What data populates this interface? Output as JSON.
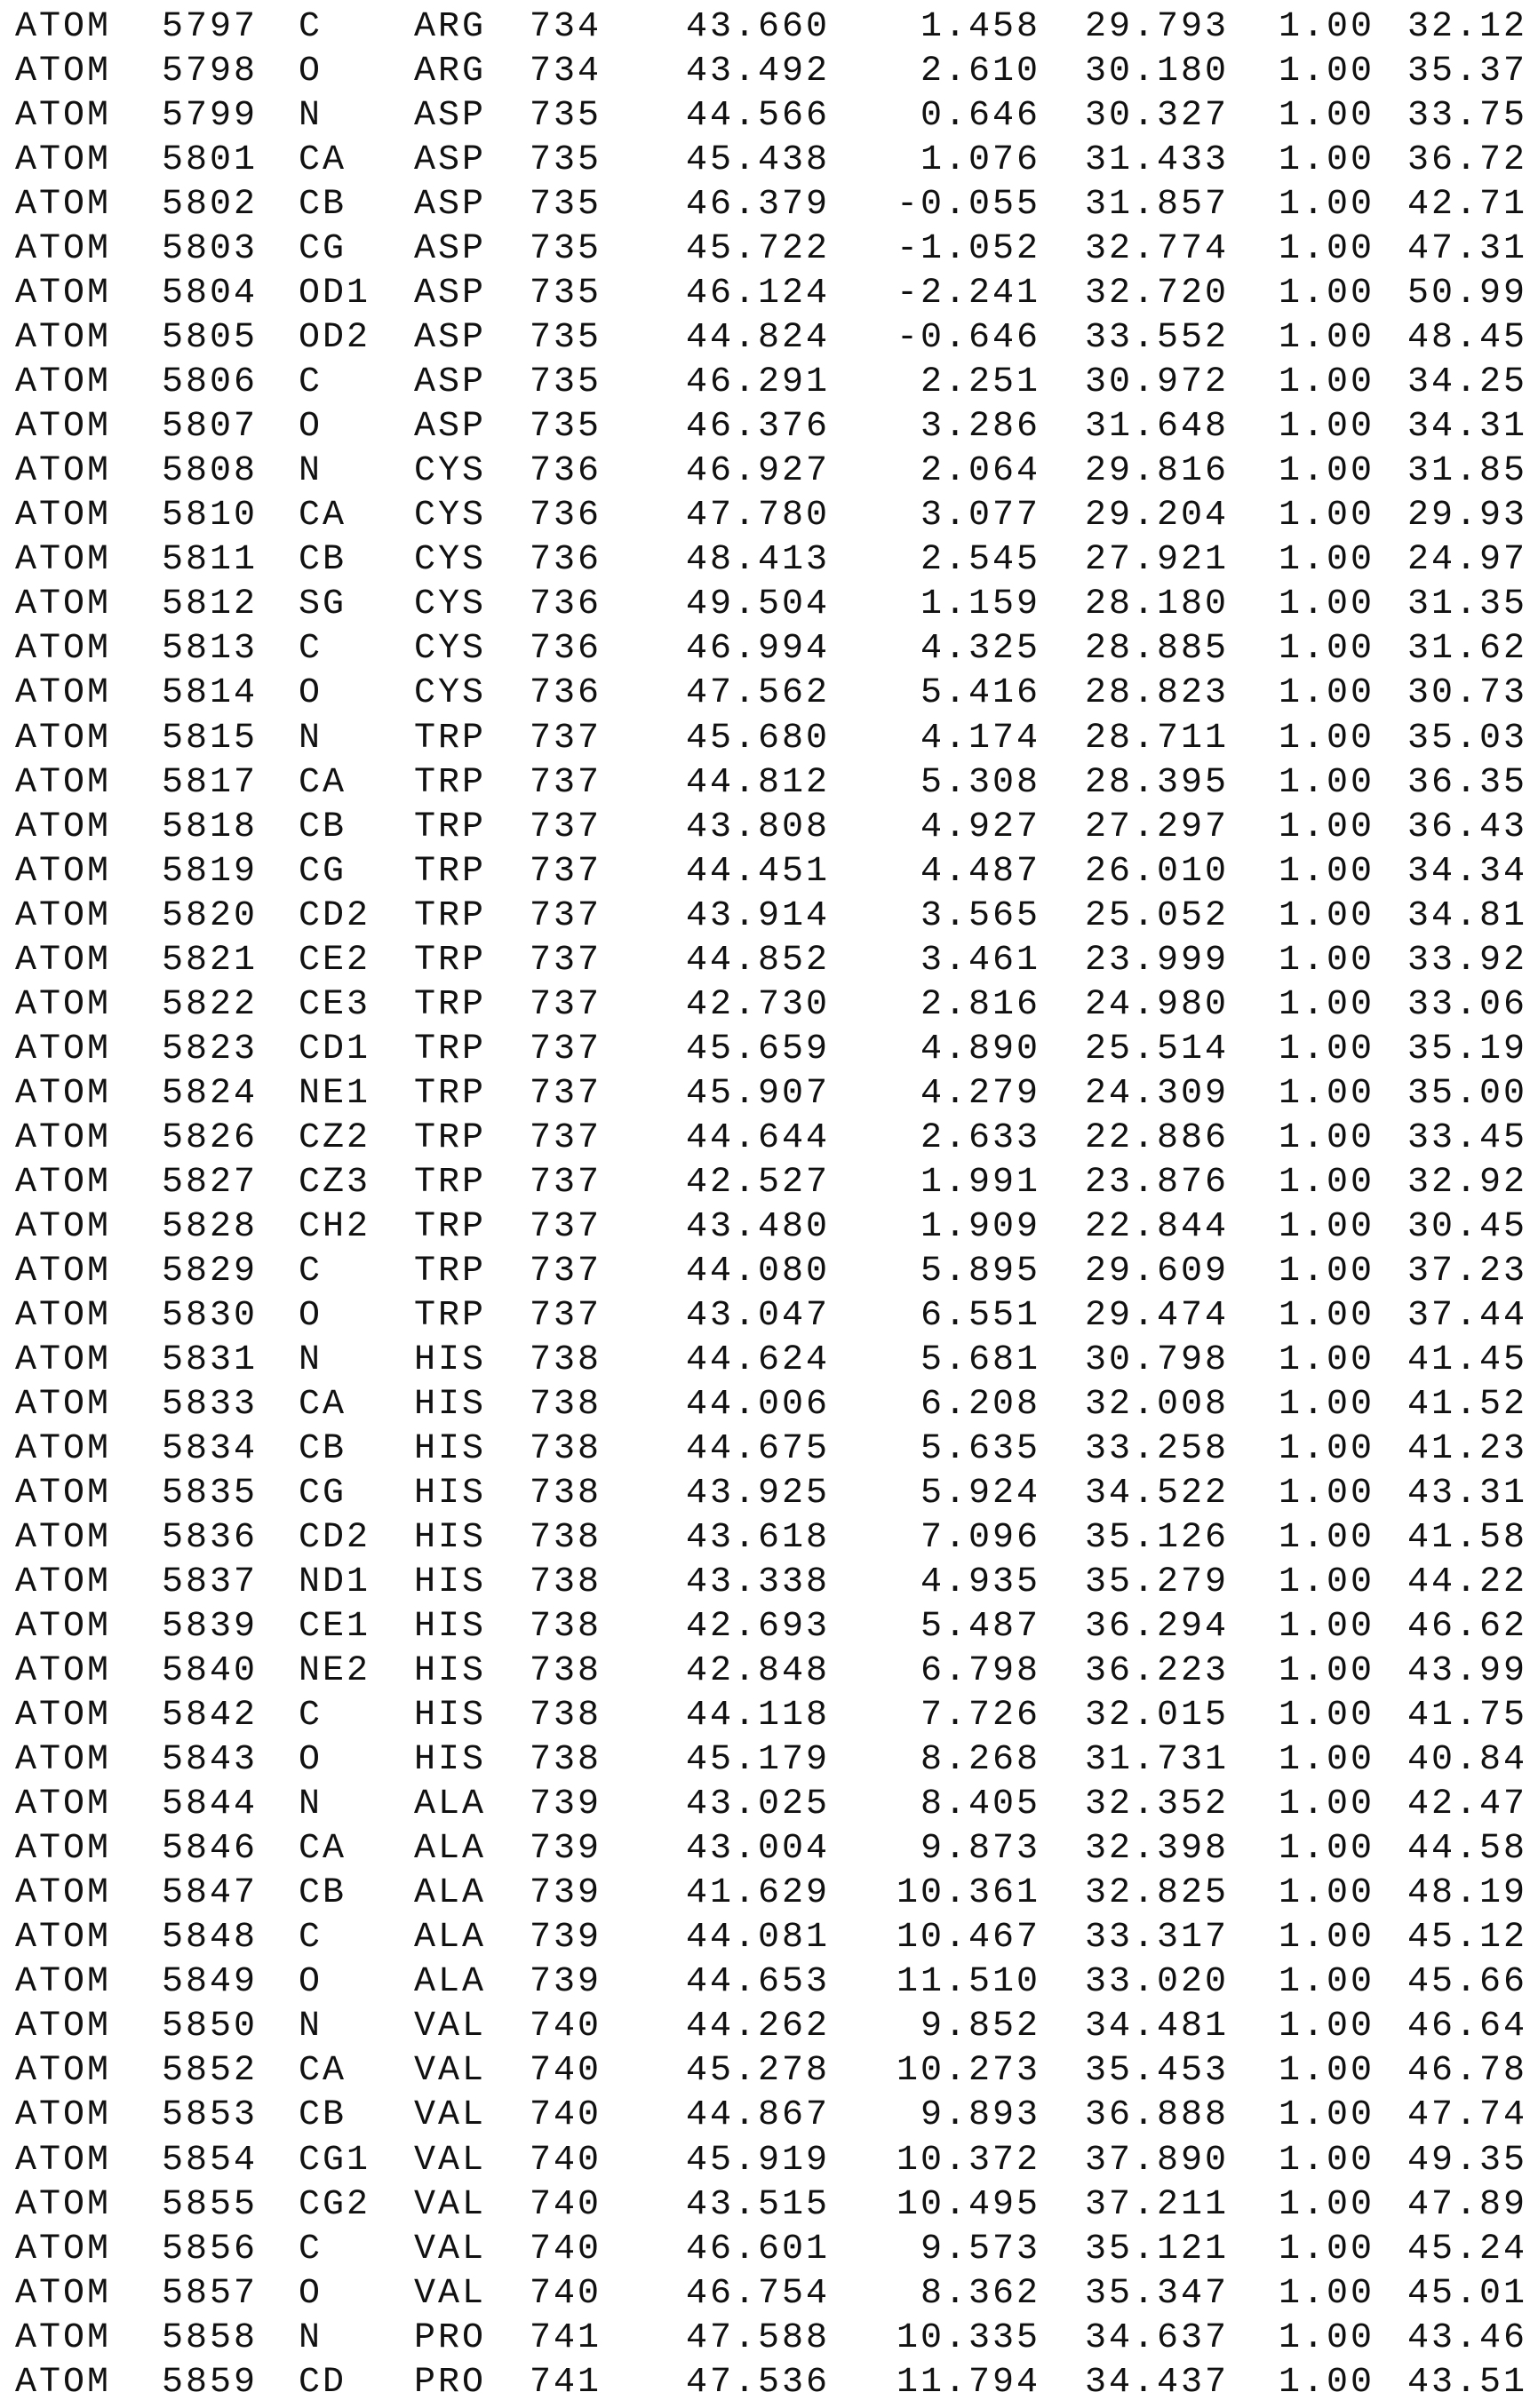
{
  "atoms": [
    [
      "ATOM",
      "5797",
      "C",
      "ARG",
      "734",
      "43.660",
      "1.458",
      "29.793",
      "1.00",
      "32.12"
    ],
    [
      "ATOM",
      "5798",
      "O",
      "ARG",
      "734",
      "43.492",
      "2.610",
      "30.180",
      "1.00",
      "35.37"
    ],
    [
      "ATOM",
      "5799",
      "N",
      "ASP",
      "735",
      "44.566",
      "0.646",
      "30.327",
      "1.00",
      "33.75"
    ],
    [
      "ATOM",
      "5801",
      "CA",
      "ASP",
      "735",
      "45.438",
      "1.076",
      "31.433",
      "1.00",
      "36.72"
    ],
    [
      "ATOM",
      "5802",
      "CB",
      "ASP",
      "735",
      "46.379",
      "-0.055",
      "31.857",
      "1.00",
      "42.71"
    ],
    [
      "ATOM",
      "5803",
      "CG",
      "ASP",
      "735",
      "45.722",
      "-1.052",
      "32.774",
      "1.00",
      "47.31"
    ],
    [
      "ATOM",
      "5804",
      "OD1",
      "ASP",
      "735",
      "46.124",
      "-2.241",
      "32.720",
      "1.00",
      "50.99"
    ],
    [
      "ATOM",
      "5805",
      "OD2",
      "ASP",
      "735",
      "44.824",
      "-0.646",
      "33.552",
      "1.00",
      "48.45"
    ],
    [
      "ATOM",
      "5806",
      "C",
      "ASP",
      "735",
      "46.291",
      "2.251",
      "30.972",
      "1.00",
      "34.25"
    ],
    [
      "ATOM",
      "5807",
      "O",
      "ASP",
      "735",
      "46.376",
      "3.286",
      "31.648",
      "1.00",
      "34.31"
    ],
    [
      "ATOM",
      "5808",
      "N",
      "CYS",
      "736",
      "46.927",
      "2.064",
      "29.816",
      "1.00",
      "31.85"
    ],
    [
      "ATOM",
      "5810",
      "CA",
      "CYS",
      "736",
      "47.780",
      "3.077",
      "29.204",
      "1.00",
      "29.93"
    ],
    [
      "ATOM",
      "5811",
      "CB",
      "CYS",
      "736",
      "48.413",
      "2.545",
      "27.921",
      "1.00",
      "24.97"
    ],
    [
      "ATOM",
      "5812",
      "SG",
      "CYS",
      "736",
      "49.504",
      "1.159",
      "28.180",
      "1.00",
      "31.35"
    ],
    [
      "ATOM",
      "5813",
      "C",
      "CYS",
      "736",
      "46.994",
      "4.325",
      "28.885",
      "1.00",
      "31.62"
    ],
    [
      "ATOM",
      "5814",
      "O",
      "CYS",
      "736",
      "47.562",
      "5.416",
      "28.823",
      "1.00",
      "30.73"
    ],
    [
      "ATOM",
      "5815",
      "N",
      "TRP",
      "737",
      "45.680",
      "4.174",
      "28.711",
      "1.00",
      "35.03"
    ],
    [
      "ATOM",
      "5817",
      "CA",
      "TRP",
      "737",
      "44.812",
      "5.308",
      "28.395",
      "1.00",
      "36.35"
    ],
    [
      "ATOM",
      "5818",
      "CB",
      "TRP",
      "737",
      "43.808",
      "4.927",
      "27.297",
      "1.00",
      "36.43"
    ],
    [
      "ATOM",
      "5819",
      "CG",
      "TRP",
      "737",
      "44.451",
      "4.487",
      "26.010",
      "1.00",
      "34.34"
    ],
    [
      "ATOM",
      "5820",
      "CD2",
      "TRP",
      "737",
      "43.914",
      "3.565",
      "25.052",
      "1.00",
      "34.81"
    ],
    [
      "ATOM",
      "5821",
      "CE2",
      "TRP",
      "737",
      "44.852",
      "3.461",
      "23.999",
      "1.00",
      "33.92"
    ],
    [
      "ATOM",
      "5822",
      "CE3",
      "TRP",
      "737",
      "42.730",
      "2.816",
      "24.980",
      "1.00",
      "33.06"
    ],
    [
      "ATOM",
      "5823",
      "CD1",
      "TRP",
      "737",
      "45.659",
      "4.890",
      "25.514",
      "1.00",
      "35.19"
    ],
    [
      "ATOM",
      "5824",
      "NE1",
      "TRP",
      "737",
      "45.907",
      "4.279",
      "24.309",
      "1.00",
      "35.00"
    ],
    [
      "ATOM",
      "5826",
      "CZ2",
      "TRP",
      "737",
      "44.644",
      "2.633",
      "22.886",
      "1.00",
      "33.45"
    ],
    [
      "ATOM",
      "5827",
      "CZ3",
      "TRP",
      "737",
      "42.527",
      "1.991",
      "23.876",
      "1.00",
      "32.92"
    ],
    [
      "ATOM",
      "5828",
      "CH2",
      "TRP",
      "737",
      "43.480",
      "1.909",
      "22.844",
      "1.00",
      "30.45"
    ],
    [
      "ATOM",
      "5829",
      "C",
      "TRP",
      "737",
      "44.080",
      "5.895",
      "29.609",
      "1.00",
      "37.23"
    ],
    [
      "ATOM",
      "5830",
      "O",
      "TRP",
      "737",
      "43.047",
      "6.551",
      "29.474",
      "1.00",
      "37.44"
    ],
    [
      "ATOM",
      "5831",
      "N",
      "HIS",
      "738",
      "44.624",
      "5.681",
      "30.798",
      "1.00",
      "41.45"
    ],
    [
      "ATOM",
      "5833",
      "CA",
      "HIS",
      "738",
      "44.006",
      "6.208",
      "32.008",
      "1.00",
      "41.52"
    ],
    [
      "ATOM",
      "5834",
      "CB",
      "HIS",
      "738",
      "44.675",
      "5.635",
      "33.258",
      "1.00",
      "41.23"
    ],
    [
      "ATOM",
      "5835",
      "CG",
      "HIS",
      "738",
      "43.925",
      "5.924",
      "34.522",
      "1.00",
      "43.31"
    ],
    [
      "ATOM",
      "5836",
      "CD2",
      "HIS",
      "738",
      "43.618",
      "7.096",
      "35.126",
      "1.00",
      "41.58"
    ],
    [
      "ATOM",
      "5837",
      "ND1",
      "HIS",
      "738",
      "43.338",
      "4.935",
      "35.279",
      "1.00",
      "44.22"
    ],
    [
      "ATOM",
      "5839",
      "CE1",
      "HIS",
      "738",
      "42.693",
      "5.487",
      "36.294",
      "1.00",
      "46.62"
    ],
    [
      "ATOM",
      "5840",
      "NE2",
      "HIS",
      "738",
      "42.848",
      "6.798",
      "36.223",
      "1.00",
      "43.99"
    ],
    [
      "ATOM",
      "5842",
      "C",
      "HIS",
      "738",
      "44.118",
      "7.726",
      "32.015",
      "1.00",
      "41.75"
    ],
    [
      "ATOM",
      "5843",
      "O",
      "HIS",
      "738",
      "45.179",
      "8.268",
      "31.731",
      "1.00",
      "40.84"
    ],
    [
      "ATOM",
      "5844",
      "N",
      "ALA",
      "739",
      "43.025",
      "8.405",
      "32.352",
      "1.00",
      "42.47"
    ],
    [
      "ATOM",
      "5846",
      "CA",
      "ALA",
      "739",
      "43.004",
      "9.873",
      "32.398",
      "1.00",
      "44.58"
    ],
    [
      "ATOM",
      "5847",
      "CB",
      "ALA",
      "739",
      "41.629",
      "10.361",
      "32.825",
      "1.00",
      "48.19"
    ],
    [
      "ATOM",
      "5848",
      "C",
      "ALA",
      "739",
      "44.081",
      "10.467",
      "33.317",
      "1.00",
      "45.12"
    ],
    [
      "ATOM",
      "5849",
      "O",
      "ALA",
      "739",
      "44.653",
      "11.510",
      "33.020",
      "1.00",
      "45.66"
    ],
    [
      "ATOM",
      "5850",
      "N",
      "VAL",
      "740",
      "44.262",
      "9.852",
      "34.481",
      "1.00",
      "46.64"
    ],
    [
      "ATOM",
      "5852",
      "CA",
      "VAL",
      "740",
      "45.278",
      "10.273",
      "35.453",
      "1.00",
      "46.78"
    ],
    [
      "ATOM",
      "5853",
      "CB",
      "VAL",
      "740",
      "44.867",
      "9.893",
      "36.888",
      "1.00",
      "47.74"
    ],
    [
      "ATOM",
      "5854",
      "CG1",
      "VAL",
      "740",
      "45.919",
      "10.372",
      "37.890",
      "1.00",
      "49.35"
    ],
    [
      "ATOM",
      "5855",
      "CG2",
      "VAL",
      "740",
      "43.515",
      "10.495",
      "37.211",
      "1.00",
      "47.89"
    ],
    [
      "ATOM",
      "5856",
      "C",
      "VAL",
      "740",
      "46.601",
      "9.573",
      "35.121",
      "1.00",
      "45.24"
    ],
    [
      "ATOM",
      "5857",
      "O",
      "VAL",
      "740",
      "46.754",
      "8.362",
      "35.347",
      "1.00",
      "45.01"
    ],
    [
      "ATOM",
      "5858",
      "N",
      "PRO",
      "741",
      "47.588",
      "10.335",
      "34.637",
      "1.00",
      "43.46"
    ],
    [
      "ATOM",
      "5859",
      "CD",
      "PRO",
      "741",
      "47.536",
      "11.794",
      "34.437",
      "1.00",
      "43.51"
    ]
  ]
}
